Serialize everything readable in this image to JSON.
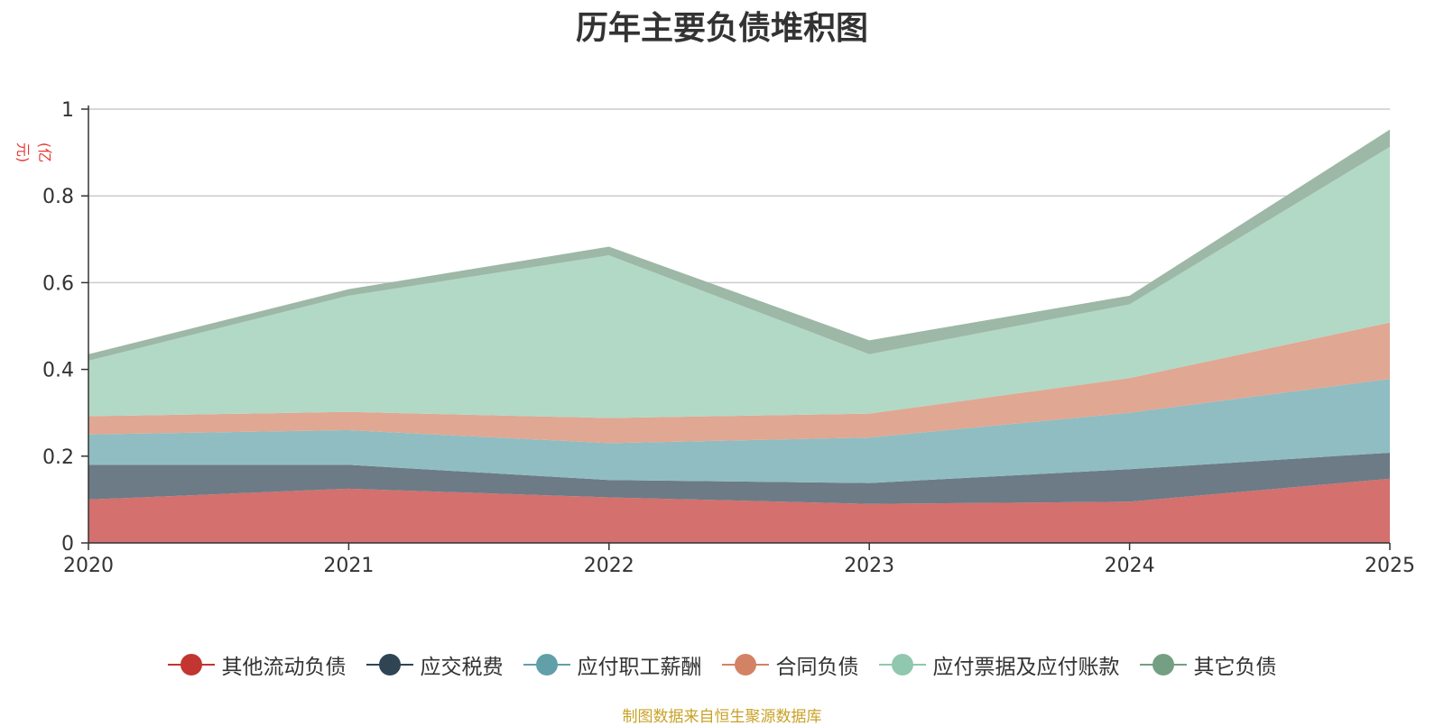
{
  "chart_data": {
    "type": "area",
    "stacked": true,
    "title": "历年主要负债堆积图",
    "unit": "(亿元)",
    "categories": [
      "2020",
      "2021",
      "2022",
      "2023",
      "2024",
      "2025"
    ],
    "y_ticks": [
      "0",
      "0.2",
      "0.4",
      "0.6",
      "0.8",
      "1"
    ],
    "ylim": [
      0,
      1
    ],
    "grid": true,
    "legend_position": "bottom",
    "series": [
      {
        "name": "其他流动负债",
        "color": "#c23531",
        "fill": "#d4706d",
        "values": [
          0.1,
          0.125,
          0.105,
          0.09,
          0.095,
          0.148
        ]
      },
      {
        "name": "应交税费",
        "color": "#2f4554",
        "fill": "#6d7b86",
        "values": [
          0.08,
          0.055,
          0.04,
          0.048,
          0.075,
          0.06
        ]
      },
      {
        "name": "应付职工薪酬",
        "color": "#61a0a8",
        "fill": "#8fbdc2",
        "values": [
          0.07,
          0.08,
          0.085,
          0.105,
          0.13,
          0.17
        ]
      },
      {
        "name": "合同负债",
        "color": "#d48265",
        "fill": "#e0a793",
        "values": [
          0.042,
          0.042,
          0.058,
          0.055,
          0.08,
          0.13
        ]
      },
      {
        "name": "应付票据及应付账款",
        "color": "#91c7ae",
        "fill": "#b1d9c6",
        "values": [
          0.128,
          0.268,
          0.375,
          0.137,
          0.17,
          0.405
        ]
      },
      {
        "name": "其它负债",
        "color": "#749f83",
        "fill": "#9db8a6",
        "values": [
          0.015,
          0.015,
          0.02,
          0.032,
          0.02,
          0.04
        ]
      }
    ]
  },
  "source_note": "制图数据来自恒生聚源数据库"
}
